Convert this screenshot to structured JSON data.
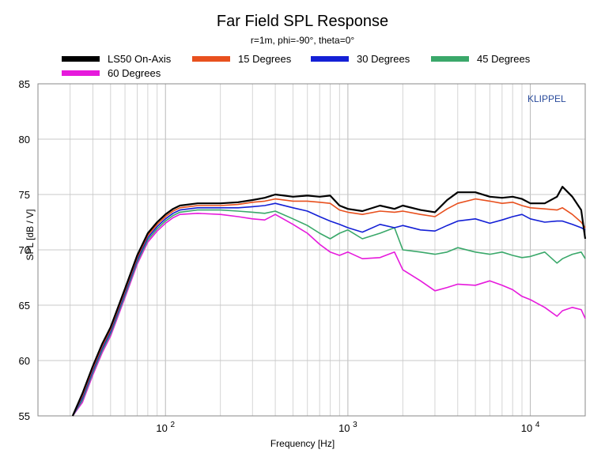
{
  "chart_data": {
    "type": "line",
    "title": "Far Field SPL Response",
    "subtitle": "r=1m, phi=-90°, theta=0°",
    "xlabel": "Frequency [Hz]",
    "ylabel": "SPL [dB / V]",
    "x_scale": "log",
    "xlim": [
      20,
      20000
    ],
    "ylim": [
      55,
      85
    ],
    "yticks": [
      55,
      60,
      65,
      70,
      75,
      80,
      85
    ],
    "xtick_labels": [
      {
        "value": 100,
        "base": "10",
        "exp": "2"
      },
      {
        "value": 1000,
        "base": "10",
        "exp": "3"
      },
      {
        "value": 10000,
        "base": "10",
        "exp": "4"
      }
    ],
    "grid": true,
    "legend_position": "top",
    "watermark": "KLIPPEL",
    "x": [
      31,
      35,
      40,
      45,
      50,
      60,
      70,
      80,
      90,
      100,
      110,
      120,
      150,
      200,
      250,
      300,
      350,
      400,
      500,
      600,
      700,
      800,
      900,
      1000,
      1200,
      1500,
      1800,
      2000,
      2500,
      3000,
      3500,
      4000,
      5000,
      6000,
      7000,
      8000,
      9000,
      10000,
      12000,
      14000,
      15000,
      17000,
      19000,
      20000
    ],
    "series": [
      {
        "name": "LS50 On-Axis",
        "color": "#000000",
        "values": [
          55,
          57,
          59.5,
          61.5,
          63,
          66.5,
          69.5,
          71.5,
          72.5,
          73.2,
          73.7,
          74,
          74.2,
          74.2,
          74.3,
          74.5,
          74.7,
          75,
          74.8,
          74.9,
          74.8,
          74.9,
          74,
          73.7,
          73.5,
          74,
          73.7,
          74,
          73.6,
          73.4,
          74.5,
          75.2,
          75.2,
          74.8,
          74.7,
          74.8,
          74.6,
          74.2,
          74.2,
          74.8,
          75.7,
          74.8,
          73.6,
          71
        ]
      },
      {
        "name": "15 Degrees",
        "color": "#e8501e",
        "values": [
          55,
          56.8,
          59.3,
          61.3,
          62.8,
          66.3,
          69.3,
          71.3,
          72.3,
          73,
          73.5,
          73.8,
          74,
          74,
          74.1,
          74.3,
          74.4,
          74.6,
          74.4,
          74.4,
          74.3,
          74.2,
          73.6,
          73.4,
          73.2,
          73.5,
          73.4,
          73.5,
          73.2,
          73,
          73.7,
          74.2,
          74.6,
          74.4,
          74.2,
          74.3,
          74,
          73.8,
          73.7,
          73.6,
          73.8,
          73.2,
          72.5,
          72
        ]
      },
      {
        "name": "30 Degrees",
        "color": "#1420d6",
        "values": [
          55,
          56.6,
          59.1,
          61.1,
          62.6,
          66.1,
          69.1,
          71.1,
          72.1,
          72.8,
          73.3,
          73.6,
          73.8,
          73.8,
          73.8,
          73.9,
          74,
          74.2,
          73.8,
          73.5,
          73,
          72.6,
          72.3,
          72,
          71.6,
          72.3,
          72,
          72.2,
          71.8,
          71.7,
          72.2,
          72.6,
          72.8,
          72.4,
          72.7,
          73,
          73.2,
          72.8,
          72.5,
          72.6,
          72.6,
          72.3,
          72,
          71.8
        ]
      },
      {
        "name": "45 Degrees",
        "color": "#3aa86a",
        "values": [
          55,
          56.4,
          58.9,
          60.9,
          62.4,
          65.9,
          68.9,
          70.9,
          71.9,
          72.6,
          73.1,
          73.4,
          73.6,
          73.6,
          73.5,
          73.4,
          73.3,
          73.5,
          72.8,
          72.2,
          71.5,
          71,
          71.5,
          71.8,
          71,
          71.5,
          72,
          70,
          69.8,
          69.6,
          69.8,
          70.2,
          69.8,
          69.6,
          69.8,
          69.5,
          69.3,
          69.4,
          69.8,
          68.8,
          69.2,
          69.6,
          69.8,
          69.2
        ]
      },
      {
        "name": "60 Degrees",
        "color": "#e61adc",
        "values": [
          55,
          56.2,
          58.7,
          60.7,
          62.2,
          65.7,
          68.7,
          70.7,
          71.7,
          72.4,
          72.9,
          73.2,
          73.3,
          73.2,
          73,
          72.8,
          72.7,
          73.2,
          72.3,
          71.5,
          70.5,
          69.8,
          69.5,
          69.8,
          69.2,
          69.3,
          69.8,
          68.2,
          67.2,
          66.3,
          66.6,
          66.9,
          66.8,
          67.2,
          66.8,
          66.4,
          65.8,
          65.5,
          64.8,
          64,
          64.5,
          64.8,
          64.6,
          63.8
        ]
      }
    ]
  }
}
